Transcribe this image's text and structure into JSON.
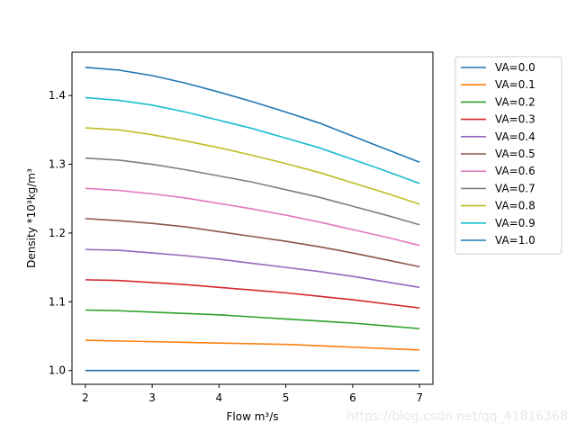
{
  "chart_data": {
    "type": "line",
    "title": "",
    "xlabel": "Flow m³/s",
    "ylabel": "Density  *10³kg/m³",
    "xlim": [
      1.8,
      7.2
    ],
    "ylim": [
      0.98,
      1.463
    ],
    "xticks": [
      2,
      3,
      4,
      5,
      6,
      7
    ],
    "yticks": [
      1.0,
      1.1,
      1.2,
      1.3,
      1.4
    ],
    "ytick_labels": [
      "1.0",
      "1.1",
      "1.2",
      "1.3",
      "1.4"
    ],
    "grid": false,
    "legend_position": "outside-right-top",
    "x": [
      2,
      2.5,
      3,
      3.5,
      4,
      4.5,
      5,
      5.5,
      6,
      6.5,
      7
    ],
    "series": [
      {
        "name": "VA=0.0",
        "color": "#1f77b4",
        "values": [
          1.0,
          1.0,
          1.0,
          1.0,
          1.0,
          1.0,
          1.0,
          1.0,
          1.0,
          1.0,
          1.0
        ]
      },
      {
        "name": "VA=0.1",
        "color": "#ff7f0e",
        "values": [
          1.044,
          1.043,
          1.042,
          1.041,
          1.04,
          1.039,
          1.038,
          1.036,
          1.034,
          1.032,
          1.03
        ]
      },
      {
        "name": "VA=0.2",
        "color": "#2ca02c",
        "values": [
          1.088,
          1.087,
          1.085,
          1.083,
          1.081,
          1.078,
          1.075,
          1.072,
          1.069,
          1.065,
          1.061
        ]
      },
      {
        "name": "VA=0.3",
        "color": "#d62728",
        "values": [
          1.132,
          1.131,
          1.128,
          1.125,
          1.121,
          1.117,
          1.113,
          1.108,
          1.103,
          1.097,
          1.091
        ]
      },
      {
        "name": "VA=0.4",
        "color": "#9467bd",
        "values": [
          1.176,
          1.175,
          1.171,
          1.167,
          1.162,
          1.156,
          1.15,
          1.144,
          1.137,
          1.129,
          1.121
        ]
      },
      {
        "name": "VA=0.5",
        "color": "#8c564b",
        "values": [
          1.221,
          1.218,
          1.214,
          1.209,
          1.202,
          1.195,
          1.188,
          1.18,
          1.171,
          1.161,
          1.151
        ]
      },
      {
        "name": "VA=0.6",
        "color": "#e377c2",
        "values": [
          1.265,
          1.262,
          1.257,
          1.251,
          1.243,
          1.235,
          1.226,
          1.216,
          1.205,
          1.194,
          1.182
        ]
      },
      {
        "name": "VA=0.7",
        "color": "#7f7f7f",
        "values": [
          1.309,
          1.306,
          1.3,
          1.292,
          1.283,
          1.274,
          1.263,
          1.252,
          1.239,
          1.226,
          1.212
        ]
      },
      {
        "name": "VA=0.8",
        "color": "#bcbd22",
        "values": [
          1.353,
          1.35,
          1.343,
          1.334,
          1.324,
          1.313,
          1.301,
          1.288,
          1.273,
          1.258,
          1.242
        ]
      },
      {
        "name": "VA=0.9",
        "color": "#17becf",
        "values": [
          1.397,
          1.393,
          1.386,
          1.376,
          1.364,
          1.352,
          1.338,
          1.324,
          1.307,
          1.29,
          1.272
        ]
      },
      {
        "name": "VA=1.0",
        "color": "#1f77b4",
        "values": [
          1.441,
          1.437,
          1.429,
          1.418,
          1.405,
          1.391,
          1.376,
          1.36,
          1.341,
          1.322,
          1.303
        ]
      }
    ]
  },
  "watermark": "https://blog.csdn.net/qq_41816368"
}
